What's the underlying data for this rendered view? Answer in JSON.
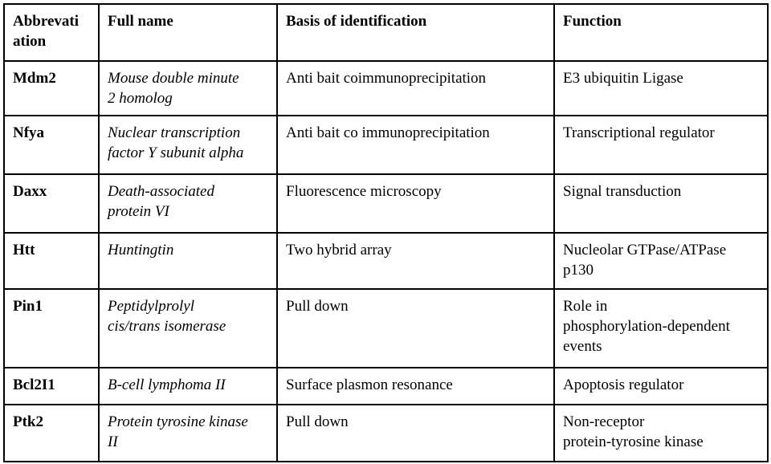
{
  "table": {
    "columns": [
      "Abbrevati\nation",
      "Full name",
      "Basis of identification",
      "Function"
    ],
    "rows": [
      {
        "abbreviation": "Mdm2",
        "full_name": "Mouse double minute\n2 homolog",
        "basis": "Anti bait coimmunoprecipitation",
        "function": "E3 ubiquitin Ligase"
      },
      {
        "abbreviation": "Nfya",
        "full_name": "Nuclear transcription\nfactor Y subunit alpha",
        "basis": "Anti bait co immunoprecipitation",
        "function": "Transcriptional regulator"
      },
      {
        "abbreviation": "Daxx",
        "full_name": "Death-associated\nprotein VI",
        "basis": "Fluorescence microscopy",
        "function": "Signal transduction"
      },
      {
        "abbreviation": "Htt",
        "full_name": "Huntingtin",
        "basis": "Two hybrid array",
        "function": "Nucleolar GTPase/ATPase\np130"
      },
      {
        "abbreviation": "Pin1",
        "full_name": "Peptidylprolyl\ncis/trans isomerase",
        "basis": "Pull down",
        "function": "Role in\nphosphorylation-dependent\nevents"
      },
      {
        "abbreviation": "Bcl2I1",
        "full_name": "B-cell lymphoma II",
        "basis": "Surface plasmon resonance",
        "function": "Apoptosis regulator"
      },
      {
        "abbreviation": "Ptk2",
        "full_name": "Protein tyrosine kinase\nII",
        "basis": "Pull down",
        "function": "Non-receptor\nprotein-tyrosine kinase"
      }
    ],
    "colors": {
      "border": "#000000",
      "text": "#000000",
      "background": "#ffffff"
    }
  }
}
